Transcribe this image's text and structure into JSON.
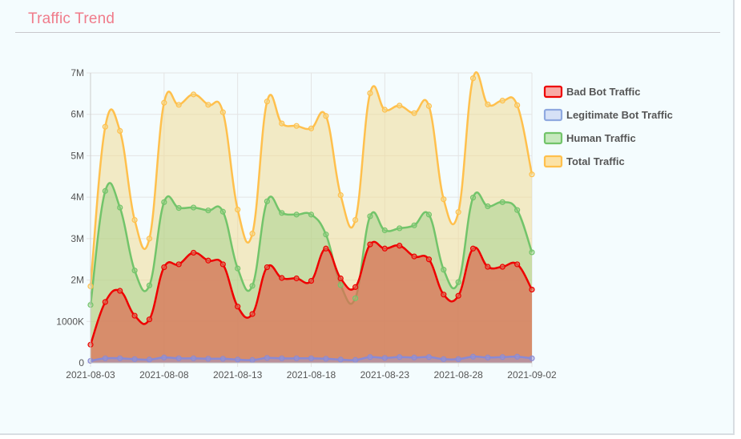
{
  "panel": {
    "title": "Traffic Trend"
  },
  "chart_data": {
    "type": "area",
    "x_ticks": [
      "2021-08-03",
      "2021-08-08",
      "2021-08-13",
      "2021-08-18",
      "2021-08-23",
      "2021-08-28",
      "2021-09-02"
    ],
    "y_ticks": [
      {
        "value": 0,
        "label": "0"
      },
      {
        "value": 1000000,
        "label": "1000K"
      },
      {
        "value": 2000000,
        "label": "2M"
      },
      {
        "value": 3000000,
        "label": "3M"
      },
      {
        "value": 4000000,
        "label": "4M"
      },
      {
        "value": 5000000,
        "label": "5M"
      },
      {
        "value": 6000000,
        "label": "6M"
      },
      {
        "value": 7000000,
        "label": "7M"
      }
    ],
    "ylim": [
      0,
      7000000
    ],
    "legend_position": "right",
    "grid": true,
    "x": [
      "2021-08-03",
      "2021-08-04",
      "2021-08-05",
      "2021-08-06",
      "2021-08-07",
      "2021-08-08",
      "2021-08-09",
      "2021-08-10",
      "2021-08-11",
      "2021-08-12",
      "2021-08-13",
      "2021-08-14",
      "2021-08-15",
      "2021-08-16",
      "2021-08-17",
      "2021-08-18",
      "2021-08-19",
      "2021-08-20",
      "2021-08-21",
      "2021-08-22",
      "2021-08-23",
      "2021-08-24",
      "2021-08-25",
      "2021-08-26",
      "2021-08-27",
      "2021-08-28",
      "2021-08-29",
      "2021-08-30",
      "2021-08-31",
      "2021-09-01",
      "2021-09-02"
    ],
    "series": [
      {
        "name": "Total Traffic",
        "color": "#ffc04d",
        "fill": "rgba(241,218,150,0.55)",
        "values": [
          1850000,
          5700000,
          5600000,
          3450000,
          3000000,
          6280000,
          6230000,
          6480000,
          6230000,
          6050000,
          3700000,
          3120000,
          6310000,
          5780000,
          5720000,
          5660000,
          5960000,
          4050000,
          3450000,
          6510000,
          6110000,
          6210000,
          6030000,
          6200000,
          3950000,
          3640000,
          6870000,
          6240000,
          6330000,
          6220000,
          4550000
        ]
      },
      {
        "name": "Human Traffic",
        "color": "#72c46a",
        "fill": "rgba(150,206,130,0.45)",
        "values": [
          1400000,
          4150000,
          3750000,
          2230000,
          1870000,
          3880000,
          3740000,
          3750000,
          3680000,
          3650000,
          2280000,
          1860000,
          3900000,
          3620000,
          3580000,
          3580000,
          3100000,
          1880000,
          1560000,
          3540000,
          3200000,
          3250000,
          3320000,
          3580000,
          2250000,
          1950000,
          3990000,
          3780000,
          3880000,
          3690000,
          2670000
        ]
      },
      {
        "name": "Bad Bot Traffic",
        "color": "#ee0000",
        "fill": "rgba(220,110,85,0.72)",
        "values": [
          440000,
          1470000,
          1740000,
          1140000,
          1050000,
          2310000,
          2380000,
          2660000,
          2470000,
          2380000,
          1360000,
          1180000,
          2310000,
          2050000,
          2040000,
          1980000,
          2760000,
          2040000,
          1830000,
          2860000,
          2760000,
          2830000,
          2570000,
          2500000,
          1650000,
          1620000,
          2760000,
          2320000,
          2320000,
          2380000,
          1770000
        ]
      },
      {
        "name": "Legitimate Bot Traffic",
        "color": "#8a8ad4",
        "fill": "rgba(150,150,215,0.45)",
        "values": [
          50000,
          110000,
          110000,
          90000,
          80000,
          130000,
          110000,
          110000,
          100000,
          100000,
          80000,
          70000,
          120000,
          110000,
          110000,
          110000,
          100000,
          80000,
          70000,
          140000,
          120000,
          140000,
          130000,
          140000,
          90000,
          90000,
          150000,
          130000,
          140000,
          150000,
          110000
        ]
      }
    ],
    "legend": [
      {
        "name": "Bad Bot Traffic",
        "stroke": "#ee0000",
        "fill": "#f8aaa6"
      },
      {
        "name": "Legitimate Bot Traffic",
        "stroke": "#8fa9e0",
        "fill": "#d6e1f6"
      },
      {
        "name": "Human Traffic",
        "stroke": "#72c46a",
        "fill": "#c6e8bd"
      },
      {
        "name": "Total Traffic",
        "stroke": "#ffc04d",
        "fill": "#fbe2a6"
      }
    ]
  }
}
